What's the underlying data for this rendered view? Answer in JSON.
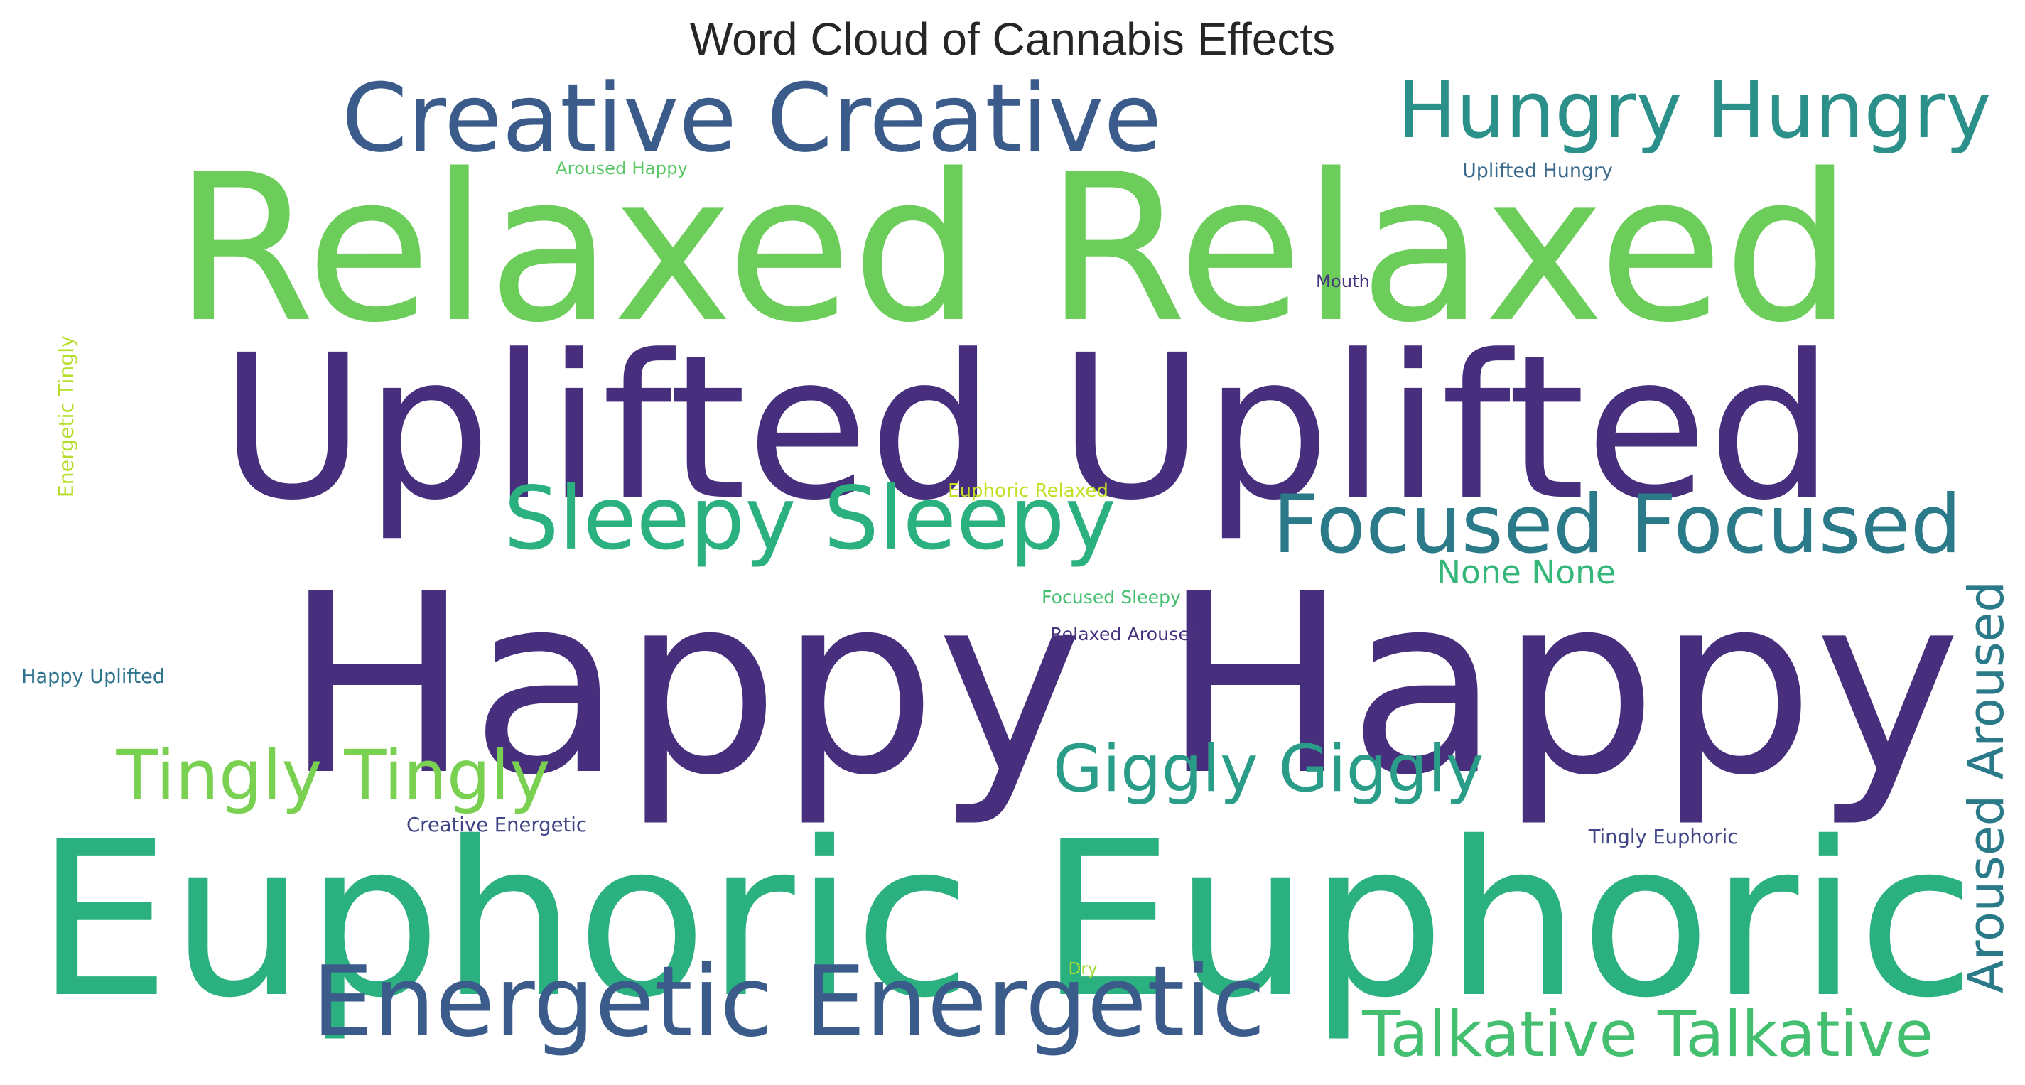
{
  "title": "Word Cloud of Cannabis Effects",
  "words": [
    {
      "text": "Relaxed Relaxed",
      "color": "#6ccd5a",
      "rotated": false
    },
    {
      "text": "Uplifted Uplifted",
      "color": "#472f7d",
      "rotated": false
    },
    {
      "text": "Happy Happy",
      "color": "#472f7d",
      "rotated": false
    },
    {
      "text": "Euphoric Euphoric",
      "color": "#2bb07f",
      "rotated": false
    },
    {
      "text": "Creative Creative",
      "color": "#3b5c8a",
      "rotated": false
    },
    {
      "text": "Hungry Hungry",
      "color": "#2b9089",
      "rotated": false
    },
    {
      "text": "Sleepy Sleepy",
      "color": "#2bb07f",
      "rotated": false
    },
    {
      "text": "Focused Focused",
      "color": "#2b7a8a",
      "rotated": false
    },
    {
      "text": "Energetic Energetic",
      "color": "#3b5c8a",
      "rotated": false
    },
    {
      "text": "Tingly Tingly",
      "color": "#7ad151",
      "rotated": false
    },
    {
      "text": "Giggly Giggly",
      "color": "#2a9d88",
      "rotated": false
    },
    {
      "text": "Talkative Talkative",
      "color": "#44bf70",
      "rotated": false
    },
    {
      "text": "Aroused Aroused",
      "color": "#2b7a8a",
      "rotated": true
    },
    {
      "text": "None None",
      "color": "#35b779",
      "rotated": false
    },
    {
      "text": "Aroused Happy",
      "color": "#58c765",
      "rotated": false
    },
    {
      "text": "Uplifted Hungry",
      "color": "#3b6a8d",
      "rotated": false
    },
    {
      "text": "Mouth",
      "color": "#46327e",
      "rotated": false
    },
    {
      "text": "Energetic Tingly",
      "color": "#b5de2b",
      "rotated": true
    },
    {
      "text": "Euphoric Relaxed",
      "color": "#c2df23",
      "rotated": false
    },
    {
      "text": "Focused Sleepy",
      "color": "#44bf70",
      "rotated": false
    },
    {
      "text": "Relaxed Aroused",
      "color": "#46327e",
      "rotated": false
    },
    {
      "text": "Happy Uplifted",
      "color": "#2c728e",
      "rotated": false
    },
    {
      "text": "Creative Energetic",
      "color": "#414487",
      "rotated": false
    },
    {
      "text": "Tingly Euphoric",
      "color": "#404688",
      "rotated": false
    },
    {
      "text": "Dry",
      "color": "#a0da39",
      "rotated": false
    }
  ]
}
